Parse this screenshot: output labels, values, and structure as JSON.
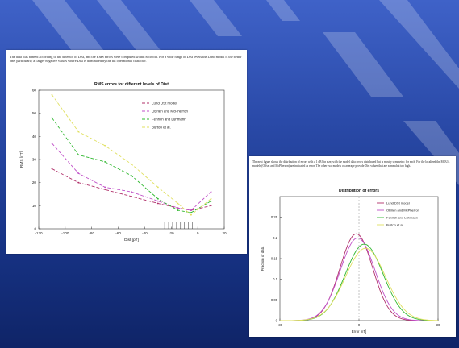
{
  "slide": {
    "colors": {
      "bg_top": "#3f62c8",
      "bg_bottom": "#0f2467",
      "stripe": "#ffffff"
    }
  },
  "panel1": {
    "caption": "The data was binned according to the detector of Dist, and the RMS errors were computed within each bin. For a wide range of Dist levels the Lund model is the better one, particularly at larger negative values where Dist is dominated by the tilt operational character."
  },
  "panel2": {
    "caption": "The next figure shows the distribution of errors with a 1 dB bin size, with the model data errors distributed but is mostly symmetric for each. For the localized the MOUA models (Offset and McPherson) are indicated as error. The other two models on average provide Dist values that are somewhat too high."
  },
  "chart_data": [
    {
      "type": "line",
      "title": "RMS errors for different levels of Dist",
      "xlabel": "Dist [pT]",
      "ylabel": "RMS [nT]",
      "xlim": [
        -120,
        20
      ],
      "ylim": [
        0,
        60
      ],
      "xticks": [
        -120,
        -100,
        -80,
        -60,
        -40,
        -20,
        0,
        20
      ],
      "yticks": [
        0,
        10,
        20,
        30,
        40,
        50,
        60
      ],
      "legend_position": "top-right",
      "grid": false,
      "series": [
        {
          "name": "Lund DSt model",
          "color": "#b0306a",
          "dash": "4,2",
          "x": [
            -110,
            -90,
            -70,
            -50,
            -30,
            -15,
            -5,
            10
          ],
          "y": [
            26,
            20,
            17,
            14,
            11,
            9,
            8,
            10
          ]
        },
        {
          "name": "OBrien and McPherron",
          "color": "#c050c8",
          "dash": "4,2",
          "x": [
            -110,
            -90,
            -70,
            -50,
            -30,
            -15,
            -5,
            10
          ],
          "y": [
            37,
            24,
            18,
            16,
            12,
            9,
            8,
            16
          ]
        },
        {
          "name": "Fenrich and Luhmann",
          "color": "#30b830",
          "dash": "4,2",
          "x": [
            -110,
            -90,
            -70,
            -50,
            -30,
            -15,
            -5,
            10
          ],
          "y": [
            48,
            32,
            29,
            23,
            13,
            8,
            7,
            12
          ]
        },
        {
          "name": "Burton et al.",
          "color": "#e0e060",
          "dash": "4,2",
          "x": [
            -110,
            -90,
            -70,
            -50,
            -30,
            -15,
            -5,
            10
          ],
          "y": [
            58,
            42,
            36,
            28,
            18,
            11,
            6,
            13
          ]
        }
      ],
      "rug_x": [
        -25,
        -22,
        -19,
        -16,
        -13,
        -10,
        -7,
        -4
      ]
    },
    {
      "type": "line",
      "title": "Distribution of errors",
      "xlabel": "Error [nT]",
      "ylabel": "Fraction of data",
      "xlim": [
        -30,
        30
      ],
      "ylim": [
        0,
        0.3
      ],
      "xticks": [
        -30,
        0,
        30
      ],
      "yticks": [
        0,
        0.05,
        0.1,
        0.15,
        0.2,
        0.25
      ],
      "legend_position": "top-right",
      "grid": false,
      "series": [
        {
          "name": "Lund DSt model",
          "color": "#b0306a",
          "mean": -1,
          "sd": 6.2,
          "peak": 0.21
        },
        {
          "name": "OBrien and McPherron",
          "color": "#c050c8",
          "mean": -0.5,
          "sd": 6.6,
          "peak": 0.2
        },
        {
          "name": "Fenrich and Luhmann",
          "color": "#30b830",
          "mean": 2,
          "sd": 7.2,
          "peak": 0.185
        },
        {
          "name": "Burton et al.",
          "color": "#e0e060",
          "mean": 2.5,
          "sd": 7.6,
          "peak": 0.175
        }
      ]
    }
  ]
}
